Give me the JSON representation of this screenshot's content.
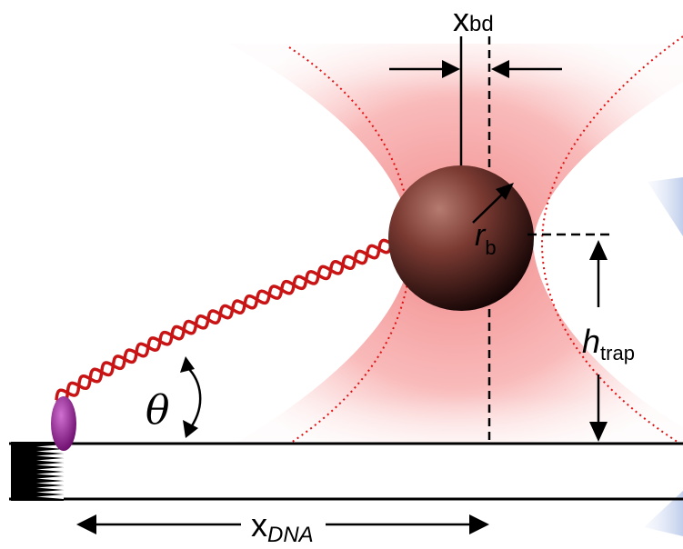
{
  "labels": {
    "x_bd_main": "x",
    "x_bd_sub": "bd",
    "r_b_main": "r",
    "r_b_sub": "b",
    "h_trap_main": "h",
    "h_trap_sub": "trap",
    "theta": "θ",
    "x_dna_main": "x",
    "x_dna_sub": "DNA"
  },
  "colors": {
    "laser_beam": "#f06a6a",
    "beam_waist_guide": "#e01010",
    "dna_strand": "#c81414",
    "bead_highlight": "#a0605a",
    "bead_shadow": "#1a0606",
    "anchor": "#8a1a8a",
    "surface": "#000000",
    "background_blue": "#c9d6ee"
  },
  "icons": {
    "bead": "microsphere",
    "anchor": "anchor-protein",
    "surface_hatch": "glass-surface-hatch"
  }
}
